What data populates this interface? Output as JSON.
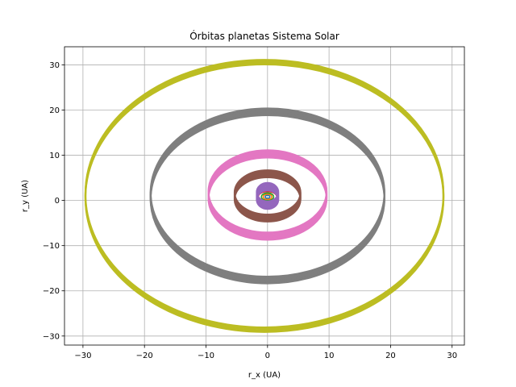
{
  "chart_data": {
    "type": "line",
    "title": "Órbitas planetas Sistema Solar",
    "xlabel": "r_x (UA)",
    "ylabel": "r_y (UA)",
    "xlim": [
      -33,
      32
    ],
    "ylim": [
      -32,
      34
    ],
    "xticks": [
      -30,
      -20,
      -10,
      0,
      10,
      20,
      30
    ],
    "yticks": [
      -30,
      -20,
      -10,
      0,
      10,
      20,
      30
    ],
    "xtick_labels": [
      "−30",
      "−20",
      "−10",
      "0",
      "10",
      "20",
      "30"
    ],
    "ytick_labels": [
      "−30",
      "−20",
      "−10",
      "0",
      "10",
      "20",
      "30"
    ],
    "grid": true,
    "series": [
      {
        "color": "#1f77b4",
        "cx": 0,
        "cy": 0.8,
        "rx": 0.39,
        "ry": 0.35,
        "band": 0.05
      },
      {
        "color": "#ff7f0e",
        "cx": 0,
        "cy": 0.8,
        "rx": 0.72,
        "ry": 0.6,
        "band": 0.05
      },
      {
        "color": "#2ca02c",
        "cx": 0,
        "cy": 0.8,
        "rx": 1.0,
        "ry": 0.85,
        "band": 0.05
      },
      {
        "color": "#d62728",
        "cx": 0,
        "cy": 0.8,
        "rx": 1.5,
        "ry": 1.2,
        "band": 0.1
      },
      {
        "color": "#9467bd",
        "cx": 0,
        "cy": 1.0,
        "rx": 1.75,
        "ry": 2.05,
        "band": 1.65
      },
      {
        "color": "#8c564b",
        "cx": 0,
        "cy": 1.0,
        "rx": 5.35,
        "ry": 4.9,
        "band": 1.55
      },
      {
        "color": "#e377c2",
        "cx": 0,
        "cy": 1.2,
        "rx": 9.6,
        "ry": 9.1,
        "band": 1.6
      },
      {
        "color": "#7f7f7f",
        "cx": 0,
        "cy": 1.0,
        "rx": 19.0,
        "ry": 18.6,
        "band": 1.5
      },
      {
        "color": "#bcbd22",
        "cx": -0.5,
        "cy": 1.0,
        "rx": 29.1,
        "ry": 29.6,
        "band": 1.0
      }
    ]
  }
}
